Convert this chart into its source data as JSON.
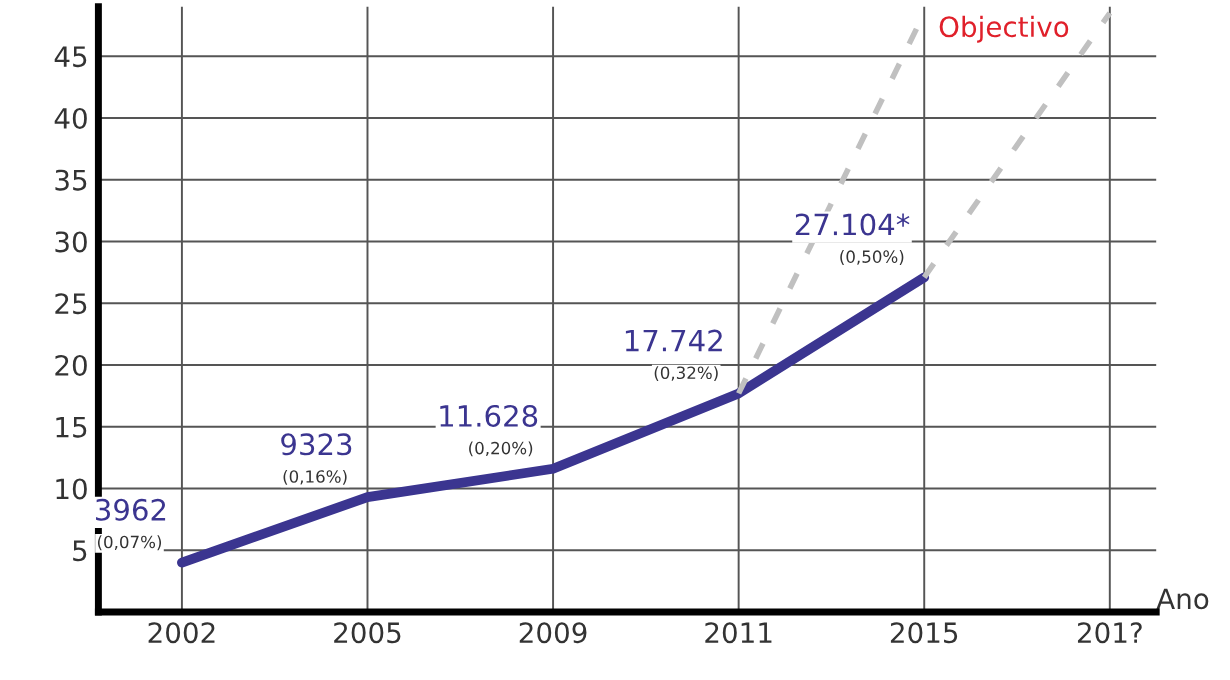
{
  "chart_data": {
    "type": "line",
    "xlabel": "Ano",
    "categories": [
      "2002",
      "2005",
      "2009",
      "2011",
      "2015",
      "201?"
    ],
    "series": [
      {
        "color": "#3b3590",
        "values": [
          4.0,
          9.3,
          11.6,
          17.7,
          27.1,
          null
        ]
      },
      {
        "color": "#c0c0c0",
        "line_style": "dashed",
        "values": [
          null,
          null,
          null,
          17.7,
          48.5,
          null
        ]
      },
      {
        "color": "#c0c0c0",
        "line_style": "dashed",
        "values": [
          null,
          null,
          null,
          null,
          27.1,
          48.5
        ]
      }
    ],
    "annotations": [
      "3962",
      "(0,07%)",
      "9323",
      "(0,16%)",
      "11.628",
      "(0,20%)",
      "17.742",
      "(0,32%)",
      "27.104*",
      "(0,50%)",
      {
        "text": "Objectivo",
        "x": "2015",
        "y": 48.5
      }
    ],
    "ylim": [
      0,
      49
    ],
    "yticks": [
      5,
      10,
      15,
      20,
      25,
      30,
      35,
      40,
      45
    ],
    "grid": true
  }
}
